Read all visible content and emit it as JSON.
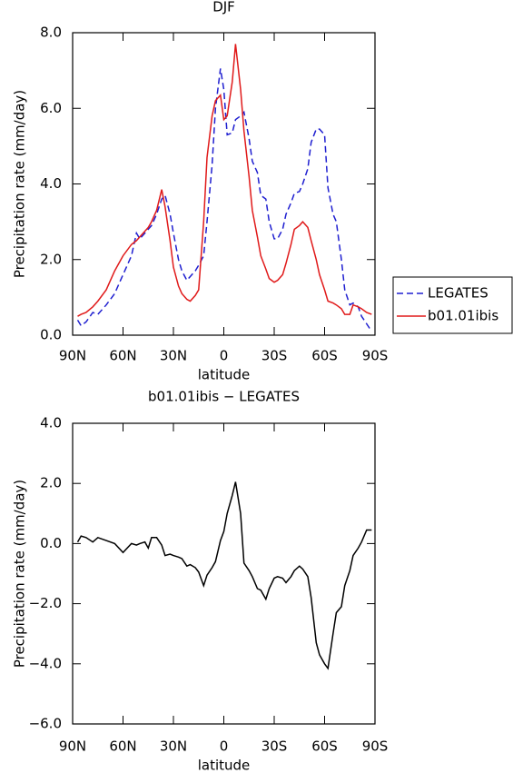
{
  "chart_data": [
    {
      "type": "line",
      "title": "DJF",
      "xlabel": "latitude",
      "ylabel": "Precipitation rate (mm/day)",
      "x": [
        87,
        85,
        82,
        78,
        75,
        70,
        65,
        60,
        55,
        52,
        50,
        47,
        45,
        43,
        40,
        37,
        35,
        32,
        30,
        27,
        25,
        22,
        20,
        17,
        15,
        12,
        10,
        7,
        5,
        2,
        0,
        -2,
        -5,
        -7,
        -10,
        -12,
        -15,
        -17,
        -20,
        -22,
        -25,
        -27,
        -30,
        -32,
        -35,
        -37,
        -40,
        -42,
        -45,
        -47,
        -50,
        -52,
        -55,
        -57,
        -60,
        -62,
        -65,
        -67,
        -70,
        -72,
        -75,
        -77,
        -80,
        -82,
        -85,
        -88
      ],
      "series": [
        {
          "name": "LEGATES",
          "color": "#1f1fd0",
          "dash": true,
          "values": [
            0.4,
            0.25,
            0.35,
            0.6,
            0.55,
            0.8,
            1.1,
            1.6,
            2.1,
            2.7,
            2.55,
            2.7,
            2.8,
            2.9,
            3.2,
            3.6,
            3.7,
            3.2,
            2.7,
            2.0,
            1.7,
            1.45,
            1.55,
            1.7,
            1.85,
            2.1,
            3.0,
            4.5,
            6.0,
            7.05,
            6.5,
            5.3,
            5.35,
            5.7,
            5.8,
            5.9,
            5.2,
            4.6,
            4.3,
            3.7,
            3.6,
            3.0,
            2.55,
            2.55,
            2.8,
            3.2,
            3.5,
            3.75,
            3.8,
            4.0,
            4.4,
            5.1,
            5.45,
            5.45,
            5.3,
            3.9,
            3.2,
            3.0,
            2.0,
            1.2,
            0.8,
            0.85,
            0.75,
            0.5,
            0.3,
            0.1
          ]
        },
        {
          "name": "b01.01ibis",
          "color": "#e01a1a",
          "dash": false,
          "values": [
            0.5,
            0.55,
            0.6,
            0.75,
            0.9,
            1.2,
            1.7,
            2.1,
            2.4,
            2.5,
            2.6,
            2.75,
            2.85,
            3.0,
            3.3,
            3.85,
            3.4,
            2.5,
            1.8,
            1.3,
            1.1,
            0.95,
            0.9,
            1.05,
            1.2,
            3.0,
            4.7,
            5.8,
            6.2,
            6.35,
            5.7,
            5.8,
            6.7,
            7.7,
            6.5,
            5.4,
            4.2,
            3.3,
            2.6,
            2.1,
            1.75,
            1.5,
            1.4,
            1.45,
            1.6,
            1.9,
            2.4,
            2.8,
            2.9,
            3.0,
            2.85,
            2.5,
            2.0,
            1.6,
            1.2,
            0.9,
            0.85,
            0.8,
            0.7,
            0.55,
            0.55,
            0.8,
            0.75,
            0.7,
            0.6,
            0.55
          ]
        }
      ],
      "xlim": [
        90,
        -90
      ],
      "xticks": [
        {
          "value": 90,
          "label": "90N"
        },
        {
          "value": 60,
          "label": "60N"
        },
        {
          "value": 30,
          "label": "30N"
        },
        0,
        {
          "value": -30,
          "label": "30S"
        },
        {
          "value": -60,
          "label": "60S"
        },
        {
          "value": -90,
          "label": "90S"
        }
      ],
      "ylim": [
        0,
        8
      ],
      "yticks": [
        {
          "value": 0,
          "label": "0.0"
        },
        {
          "value": 2,
          "label": "2.0"
        },
        {
          "value": 4,
          "label": "4.0"
        },
        {
          "value": 6,
          "label": "6.0"
        },
        {
          "value": 8,
          "label": "8.0"
        }
      ],
      "legend": "right"
    },
    {
      "type": "line",
      "title": "b01.01ibis − LEGATES",
      "xlabel": "latitude",
      "ylabel": "Precipitation rate (mm/day)",
      "x": [
        87,
        85,
        82,
        78,
        75,
        70,
        65,
        60,
        55,
        52,
        50,
        47,
        45,
        43,
        40,
        37,
        35,
        32,
        30,
        27,
        25,
        22,
        20,
        17,
        15,
        12,
        10,
        7,
        5,
        2,
        0,
        -2,
        -5,
        -7,
        -10,
        -12,
        -15,
        -17,
        -20,
        -22,
        -25,
        -27,
        -30,
        -32,
        -35,
        -37,
        -40,
        -42,
        -45,
        -47,
        -50,
        -52,
        -55,
        -57,
        -60,
        -62,
        -65,
        -67,
        -70,
        -72,
        -75,
        -77,
        -80,
        -82,
        -85,
        -88
      ],
      "series": [
        {
          "color": "#000000",
          "dash": false,
          "values": [
            0.05,
            0.25,
            0.2,
            0.05,
            0.2,
            0.1,
            0.0,
            -0.3,
            0.0,
            -0.05,
            0.0,
            0.05,
            -0.15,
            0.2,
            0.2,
            -0.05,
            -0.4,
            -0.35,
            -0.4,
            -0.45,
            -0.5,
            -0.75,
            -0.7,
            -0.8,
            -0.95,
            -1.4,
            -1.05,
            -0.8,
            -0.6,
            0.1,
            0.4,
            1.0,
            1.6,
            2.05,
            1.0,
            -0.65,
            -0.9,
            -1.1,
            -1.5,
            -1.55,
            -1.85,
            -1.5,
            -1.15,
            -1.1,
            -1.15,
            -1.3,
            -1.1,
            -0.9,
            -0.75,
            -0.85,
            -1.1,
            -1.8,
            -3.3,
            -3.7,
            -4.0,
            -4.15,
            -3.0,
            -2.3,
            -2.1,
            -1.4,
            -0.9,
            -0.4,
            -0.15,
            0.05,
            0.45,
            0.45
          ]
        }
      ],
      "xlim": [
        90,
        -90
      ],
      "xticks": [
        {
          "value": 90,
          "label": "90N"
        },
        {
          "value": 60,
          "label": "60N"
        },
        {
          "value": 30,
          "label": "30N"
        },
        0,
        {
          "value": -30,
          "label": "30S"
        },
        {
          "value": -60,
          "label": "60S"
        },
        {
          "value": -90,
          "label": "90S"
        }
      ],
      "ylim": [
        -6,
        4
      ],
      "yticks": [
        {
          "value": -6,
          "label": "−6.0"
        },
        {
          "value": -4,
          "label": "−4.0"
        },
        {
          "value": -2,
          "label": "−2.0"
        },
        {
          "value": 0,
          "label": "0.0"
        },
        {
          "value": 2,
          "label": "2.0"
        },
        {
          "value": 4,
          "label": "4.0"
        }
      ]
    }
  ]
}
